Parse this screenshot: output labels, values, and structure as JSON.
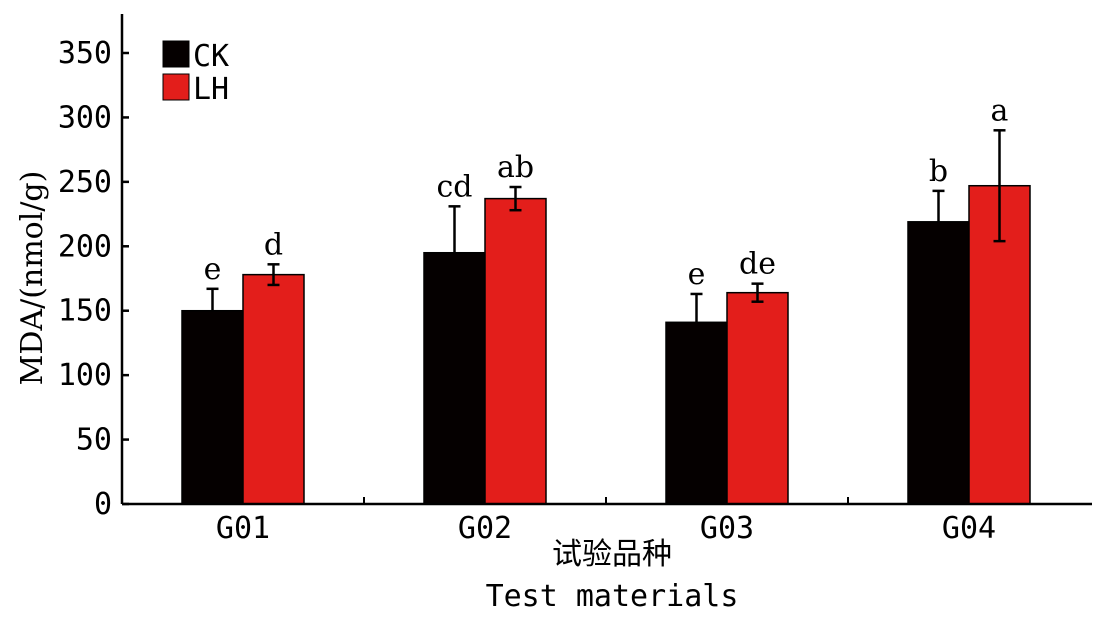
{
  "chart_data": {
    "type": "bar",
    "title": "",
    "xlabel": "试验品种",
    "xlabel_en": "Test materials",
    "ylabel": "MDA/(nmol/g)",
    "ylim": [
      0,
      350
    ],
    "yticks": [
      0,
      50,
      100,
      150,
      200,
      250,
      300,
      350
    ],
    "categories": [
      "G01",
      "G02",
      "G03",
      "G04"
    ],
    "legend_position": "top-left",
    "grid": false,
    "series": [
      {
        "name": "CK",
        "color": "#050000",
        "values": [
          150,
          195,
          141,
          219
        ],
        "errors": [
          17,
          36,
          22,
          24
        ],
        "significance": [
          "e",
          "cd",
          "e",
          "b"
        ]
      },
      {
        "name": "LH",
        "color": "#e31e1b",
        "values": [
          178,
          237,
          164,
          247
        ],
        "errors": [
          8,
          9,
          7,
          43
        ],
        "significance": [
          "d",
          "ab",
          "de",
          "a"
        ]
      }
    ]
  }
}
